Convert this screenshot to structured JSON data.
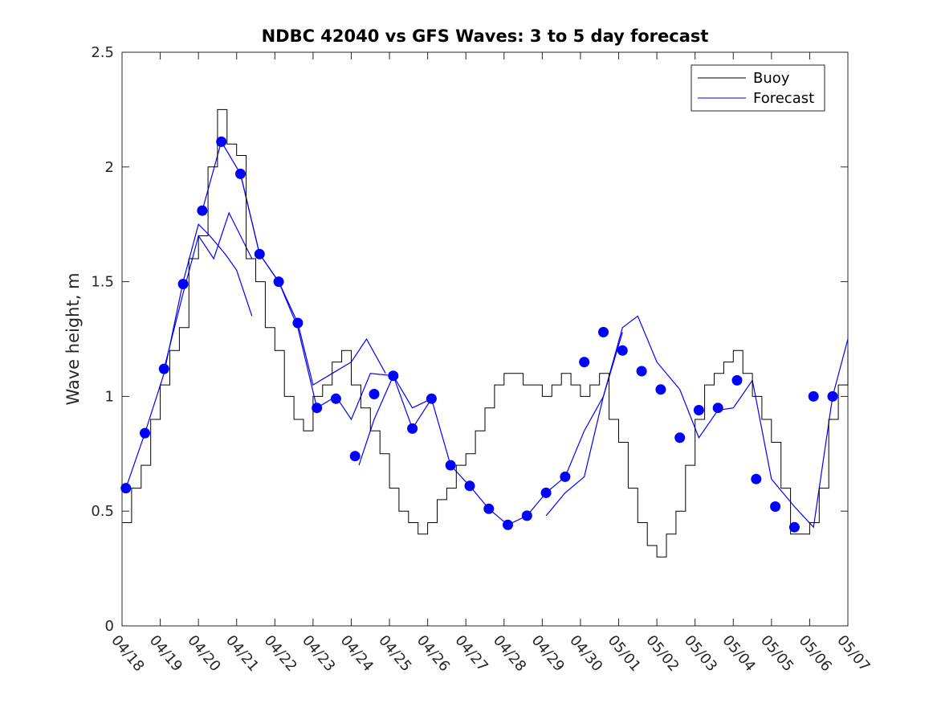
{
  "chart_data": {
    "type": "line",
    "title": "NDBC 42040 vs GFS Waves: 3 to 5 day forecast",
    "xlabel": "",
    "ylabel": "Wave height, m",
    "ylim": [
      0,
      2.5
    ],
    "yticks": [
      "0",
      "0.5",
      "1",
      "1.5",
      "2",
      "2.5"
    ],
    "x_tick_labels": [
      "04/18",
      "04/19",
      "04/20",
      "04/21",
      "04/22",
      "04/23",
      "04/24",
      "04/25",
      "04/26",
      "04/27",
      "04/28",
      "04/29",
      "04/30",
      "05/01",
      "05/02",
      "05/03",
      "05/04",
      "05/05",
      "05/06",
      "05/07"
    ],
    "x_unit": "days since 04/18",
    "xlim": [
      0,
      19
    ],
    "legend": {
      "position": "top-right",
      "entries": [
        {
          "label": "Buoy",
          "color": "#000000"
        },
        {
          "label": "Forecast",
          "color": "#0000ff"
        }
      ]
    },
    "grid": false,
    "colors": {
      "buoy": "#000000",
      "forecast": "#0000ff"
    },
    "series": [
      {
        "name": "Buoy",
        "x": [
          0,
          0.25,
          0.5,
          0.75,
          1.0,
          1.25,
          1.5,
          1.75,
          2.0,
          2.25,
          2.5,
          2.75,
          3.0,
          3.25,
          3.5,
          3.75,
          4.0,
          4.25,
          4.5,
          4.75,
          5.0,
          5.25,
          5.5,
          5.75,
          6.0,
          6.25,
          6.5,
          6.75,
          7.0,
          7.25,
          7.5,
          7.75,
          8.0,
          8.25,
          8.5,
          8.75,
          9.0,
          9.25,
          9.5,
          9.75,
          10.0,
          10.25,
          10.5,
          10.75,
          11.0,
          11.25,
          11.5,
          11.75,
          12.0,
          12.25,
          12.5,
          12.75,
          13.0,
          13.25,
          13.5,
          13.75,
          14.0,
          14.25,
          14.5,
          14.75,
          15.0,
          15.25,
          15.5,
          15.75,
          16.0,
          16.25,
          16.5,
          16.75,
          17.0,
          17.25,
          17.5,
          17.75,
          18.0,
          18.25,
          18.5,
          18.75,
          19.0
        ],
        "values": [
          0.45,
          0.6,
          0.7,
          0.9,
          1.05,
          1.2,
          1.3,
          1.6,
          1.7,
          2.0,
          2.25,
          2.1,
          2.05,
          1.6,
          1.5,
          1.3,
          1.2,
          1.0,
          0.9,
          0.85,
          1.0,
          1.05,
          1.15,
          1.2,
          1.05,
          0.95,
          0.85,
          0.75,
          0.6,
          0.5,
          0.45,
          0.4,
          0.45,
          0.55,
          0.6,
          0.7,
          0.75,
          0.85,
          0.95,
          1.05,
          1.1,
          1.1,
          1.05,
          1.05,
          1.0,
          1.05,
          1.1,
          1.05,
          1.0,
          1.05,
          1.1,
          0.9,
          0.8,
          0.6,
          0.45,
          0.35,
          0.3,
          0.4,
          0.5,
          0.7,
          0.9,
          1.05,
          1.1,
          1.15,
          1.2,
          1.1,
          1.0,
          0.9,
          0.8,
          0.6,
          0.4,
          0.4,
          0.45,
          0.6,
          0.9,
          1.05,
          1.2
        ]
      },
      {
        "name": "Forecast",
        "marker_x": [
          0.1,
          0.6,
          1.1,
          1.6,
          2.1,
          2.6,
          3.1,
          3.6,
          4.1,
          4.6,
          5.1,
          5.6,
          6.1,
          6.6,
          7.1,
          7.6,
          8.1,
          8.6,
          9.1,
          9.6,
          10.1,
          10.6,
          11.1,
          11.6,
          12.1,
          12.6,
          13.1,
          13.6,
          14.1,
          14.6,
          15.1,
          15.6,
          16.1,
          16.6,
          17.1,
          17.6,
          18.1,
          18.6
        ],
        "marker_values": [
          0.6,
          0.84,
          1.12,
          1.49,
          1.81,
          2.11,
          1.97,
          1.62,
          1.5,
          1.32,
          0.95,
          0.99,
          0.74,
          1.01,
          1.09,
          0.86,
          0.99,
          0.7,
          0.61,
          0.51,
          0.44,
          0.48,
          0.58,
          0.65,
          1.15,
          1.28,
          1.2,
          1.11,
          1.03,
          0.82,
          0.94,
          0.95,
          1.07,
          0.64,
          0.52,
          0.43,
          1.0,
          1.0
        ]
      }
    ],
    "forecast_runs": [
      {
        "x": [
          0.1,
          0.6,
          1.1,
          1.6,
          2.0,
          2.3,
          2.7,
          3.0,
          3.4
        ],
        "values": [
          0.6,
          0.84,
          1.1,
          1.5,
          1.75,
          1.7,
          1.62,
          1.55,
          1.35
        ]
      },
      {
        "x": [
          1.1,
          1.6,
          2.0,
          2.4,
          2.8,
          3.1,
          3.4
        ],
        "values": [
          1.12,
          1.45,
          1.7,
          1.6,
          1.8,
          1.7,
          1.6
        ]
      },
      {
        "x": [
          2.1,
          2.6,
          3.1,
          3.6,
          4.1,
          4.6,
          5.0,
          5.5,
          6.0,
          6.4,
          6.9
        ],
        "values": [
          1.81,
          2.11,
          1.97,
          1.62,
          1.5,
          1.32,
          1.05,
          1.1,
          1.15,
          1.25,
          1.1
        ]
      },
      {
        "x": [
          3.1,
          3.6,
          4.1,
          4.6,
          5.1,
          5.6,
          6.0,
          6.5,
          7.1,
          7.6,
          8.1
        ],
        "values": [
          1.97,
          1.62,
          1.5,
          1.3,
          0.95,
          1.0,
          0.9,
          1.1,
          1.09,
          0.95,
          0.99
        ]
      },
      {
        "x": [
          6.2,
          6.6,
          7.1,
          7.6,
          8.1,
          8.6,
          9.1,
          9.6,
          10.1,
          10.6,
          11.1,
          11.6,
          12.1,
          12.6,
          13.1
        ],
        "values": [
          0.7,
          0.9,
          1.09,
          0.86,
          0.99,
          0.7,
          0.61,
          0.51,
          0.44,
          0.48,
          0.58,
          0.65,
          0.85,
          1.0,
          1.28
        ]
      },
      {
        "x": [
          11.1,
          11.6,
          12.1,
          12.6,
          13.1,
          13.5,
          14.0,
          14.6,
          15.1,
          15.6,
          16.0,
          16.5,
          17.0,
          17.6,
          18.1,
          18.6,
          19.0
        ],
        "values": [
          0.48,
          0.58,
          0.65,
          1.0,
          1.3,
          1.35,
          1.15,
          1.03,
          0.82,
          0.94,
          0.95,
          1.07,
          0.64,
          0.52,
          0.43,
          1.0,
          1.25
        ]
      }
    ]
  }
}
